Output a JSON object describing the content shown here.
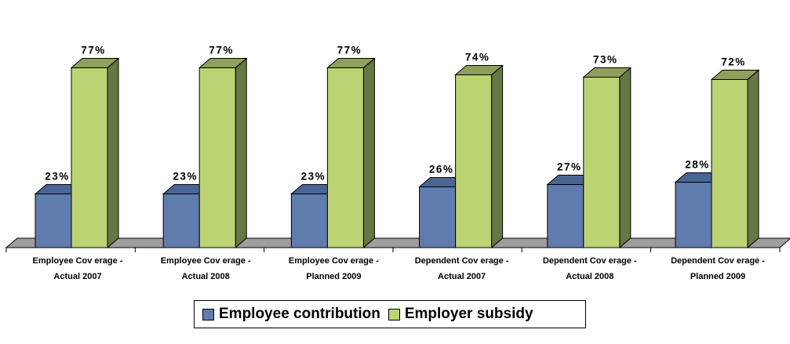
{
  "colors": {
    "employee": "#5f7cac",
    "employee_top": "#4a6594",
    "employee_side": "#3b5179",
    "employer": "#bcd373",
    "employer_top": "#8fa05b",
    "employer_side": "#677646",
    "floor": "#9e9e9e"
  },
  "chart_data": {
    "type": "bar",
    "categories": [
      [
        "Employee Cov erage -",
        "Actual 2007"
      ],
      [
        "Employee Cov erage -",
        "Actual 2008"
      ],
      [
        "Employee Cov erage -",
        "Planned 2009"
      ],
      [
        "Dependent Cov erage -",
        "Actual 2007"
      ],
      [
        "Dependent Cov erage -",
        "Actual 2008"
      ],
      [
        "Dependent Cov erage -",
        "Planned 2009"
      ]
    ],
    "series": [
      {
        "name": "Employee contribution",
        "values": [
          23,
          23,
          23,
          26,
          27,
          28
        ],
        "labels": [
          "23%",
          "23%",
          "23%",
          "26%",
          "27%",
          "28%"
        ]
      },
      {
        "name": "Employer subsidy",
        "values": [
          77,
          77,
          77,
          74,
          73,
          72
        ],
        "labels": [
          "77%",
          "77%",
          "77%",
          "74%",
          "73%",
          "72%"
        ]
      }
    ],
    "ylim": [
      0,
      100
    ],
    "grid": false,
    "legend_position": "bottom"
  }
}
